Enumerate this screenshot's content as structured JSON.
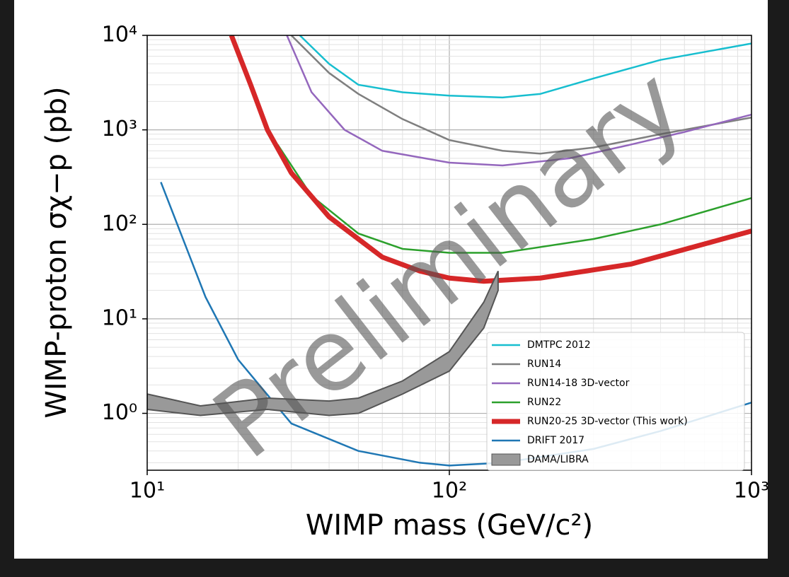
{
  "chart_data": {
    "type": "line",
    "log_x": true,
    "log_y": true,
    "grid": true,
    "minor_grid": true,
    "legend": "lower right",
    "xlabel": "WIMP mass (GeV/c²)",
    "ylabel": "WIMP-proton σχ−p (pb)",
    "annotation": "Preliminary",
    "xlim": [
      10,
      1000
    ],
    "ylim": [
      0.25,
      10000
    ],
    "xticks": [
      {
        "value": 10,
        "label": "10¹"
      },
      {
        "value": 100,
        "label": "10²"
      },
      {
        "value": 1000,
        "label": "10³"
      }
    ],
    "yticks": [
      {
        "value": 1,
        "label": "10⁰"
      },
      {
        "value": 10,
        "label": "10¹"
      },
      {
        "value": 100,
        "label": "10²"
      },
      {
        "value": 1000,
        "label": "10³"
      },
      {
        "value": 10000,
        "label": "10⁴"
      }
    ],
    "series": [
      {
        "name": "DMTPC 2012",
        "color": "#17becf",
        "linewidth": 2.5,
        "x": [
          32,
          40,
          50,
          70,
          100,
          150,
          200,
          300,
          500,
          1000
        ],
        "values": [
          10000,
          5000,
          3000,
          2500,
          2300,
          2200,
          2400,
          3500,
          5500,
          8200
        ]
      },
      {
        "name": "RUN14",
        "color": "#7f7f7f",
        "linewidth": 2.5,
        "x": [
          30,
          40,
          50,
          70,
          100,
          150,
          200,
          300,
          500,
          1000
        ],
        "values": [
          10000,
          4000,
          2400,
          1300,
          780,
          600,
          560,
          650,
          900,
          1350
        ]
      },
      {
        "name": "RUN14-18 3D-vector",
        "color": "#9467bd",
        "linewidth": 2.5,
        "x": [
          29,
          35,
          45,
          60,
          100,
          150,
          250,
          400,
          600,
          1000
        ],
        "values": [
          10000,
          2500,
          1000,
          600,
          450,
          420,
          500,
          700,
          950,
          1450
        ]
      },
      {
        "name": "RUN22",
        "color": "#2ca02c",
        "linewidth": 2.5,
        "x": [
          27,
          35,
          50,
          70,
          100,
          150,
          300,
          500,
          1000
        ],
        "values": [
          700,
          200,
          80,
          55,
          50,
          50,
          70,
          100,
          190
        ]
      },
      {
        "name": "RUN20-25 3D-vector (This work)",
        "color": "#d62728",
        "linewidth": 7,
        "x": [
          19,
          22,
          25,
          30,
          40,
          60,
          80,
          100,
          130,
          200,
          400,
          1000
        ],
        "values": [
          10000,
          3000,
          1000,
          350,
          120,
          45,
          32,
          27,
          25,
          27,
          38,
          85
        ]
      },
      {
        "name": "DRIFT 2017",
        "color": "#1f77b4",
        "linewidth": 2.5,
        "x": [
          11.1,
          15.6,
          20,
          30,
          50,
          80,
          100,
          150,
          300,
          500,
          1000
        ],
        "values": [
          280,
          17,
          3.7,
          0.78,
          0.4,
          0.3,
          0.28,
          0.3,
          0.42,
          0.65,
          1.3
        ]
      },
      {
        "name": "DAMA/LIBRA",
        "color": "#999999",
        "type": "band",
        "x": [
          10,
          15,
          25,
          40,
          50,
          70,
          100,
          130,
          145
        ],
        "values": [
          1.6,
          1.2,
          1.45,
          1.35,
          1.45,
          2.2,
          4.5,
          15,
          32
        ],
        "lower": [
          1.1,
          0.95,
          1.1,
          0.95,
          1.0,
          1.6,
          2.8,
          8,
          20
        ]
      }
    ]
  }
}
